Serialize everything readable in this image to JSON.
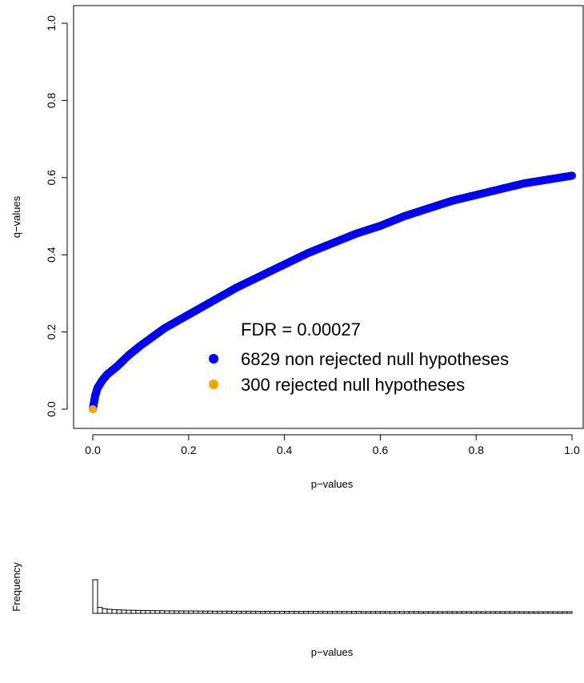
{
  "chart_data": [
    {
      "type": "scatter",
      "xlabel": "p−values",
      "ylabel": "q−values",
      "xlim": [
        0,
        1
      ],
      "ylim": [
        0,
        1
      ],
      "x_ticks": [
        "0.0",
        "0.2",
        "0.4",
        "0.6",
        "0.8",
        "1.0"
      ],
      "y_ticks": [
        "0.0",
        "0.2",
        "0.4",
        "0.6",
        "0.8",
        "1.0"
      ],
      "legend": {
        "placement": "center-right",
        "title": "FDR = 0.00027",
        "entries": [
          {
            "label": "6829 non rejected null hypotheses",
            "color": "#0000ff"
          },
          {
            "label": "300 rejected null hypotheses",
            "color": "#ffa500"
          }
        ]
      },
      "series": [
        {
          "name": "6829 non rejected null hypotheses",
          "color": "#0000ff",
          "x": [
            0.0,
            0.005,
            0.01,
            0.02,
            0.03,
            0.05,
            0.075,
            0.1,
            0.15,
            0.2,
            0.25,
            0.3,
            0.35,
            0.4,
            0.45,
            0.5,
            0.55,
            0.6,
            0.65,
            0.7,
            0.75,
            0.8,
            0.85,
            0.9,
            0.95,
            1.0
          ],
          "y": [
            0.0,
            0.035,
            0.055,
            0.075,
            0.09,
            0.11,
            0.14,
            0.165,
            0.21,
            0.245,
            0.28,
            0.315,
            0.345,
            0.375,
            0.405,
            0.43,
            0.455,
            0.475,
            0.5,
            0.52,
            0.54,
            0.555,
            0.57,
            0.585,
            0.595,
            0.605
          ]
        },
        {
          "name": "300 rejected null hypotheses",
          "color": "#ffa500",
          "x": [
            0.0
          ],
          "y": [
            0.0
          ]
        }
      ]
    },
    {
      "type": "bar",
      "xlabel": "p−values",
      "ylabel": "Frequency",
      "xlim": [
        0,
        1
      ],
      "bin_width": 0.01,
      "values": [
        400,
        70,
        55,
        48,
        44,
        41,
        39,
        37,
        36,
        35,
        34,
        33,
        32,
        31,
        31,
        30,
        30,
        29,
        29,
        28,
        28,
        28,
        27,
        27,
        27,
        26,
        26,
        26,
        26,
        25,
        25,
        25,
        25,
        25,
        24,
        24,
        24,
        24,
        24,
        24,
        23,
        23,
        23,
        23,
        23,
        23,
        23,
        22,
        22,
        22,
        22,
        22,
        22,
        22,
        22,
        22,
        21,
        21,
        21,
        21,
        21,
        21,
        21,
        21,
        21,
        21,
        21,
        21,
        20,
        20,
        20,
        20,
        20,
        20,
        20,
        20,
        20,
        20,
        20,
        20,
        20,
        20,
        20,
        20,
        20,
        20,
        20,
        20,
        20,
        19,
        19,
        19,
        19,
        19,
        19,
        19,
        19,
        19,
        19,
        19
      ]
    }
  ]
}
